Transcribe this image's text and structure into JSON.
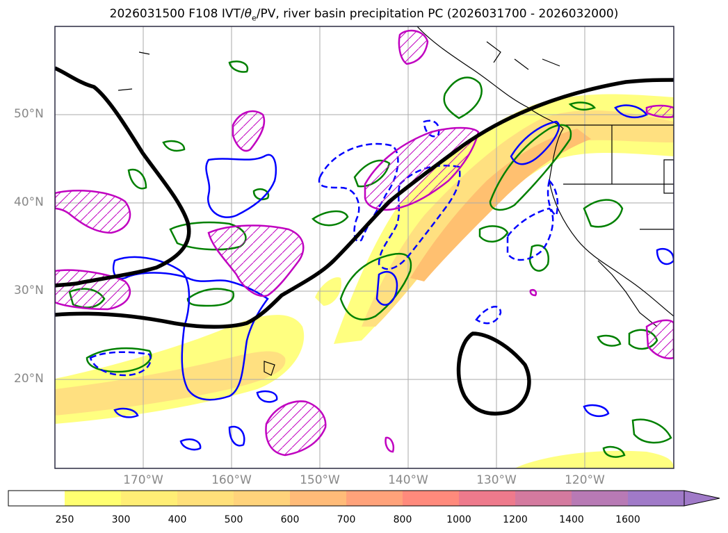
{
  "title": "2026031500 F108 IVT/θe/PV, river basin precipitation PC (2026031700 - 2026032000)",
  "title_parts": {
    "prefix": "2026031500 F108 IVT/",
    "theta": "θ",
    "sub_e": "e",
    "suffix": "/PV, river basin precipitation PC (2026031700 - 2026032000)"
  },
  "map": {
    "lat_labels": [
      "50°N",
      "40°N",
      "30°N",
      "20°N"
    ],
    "lon_labels": [
      "170°W",
      "160°W",
      "150°W",
      "140°W",
      "130°W",
      "120°W"
    ],
    "colors": {
      "ivt_low": "#ffff80",
      "ivt_mid": "#ffe080",
      "ivt_high": "#ffc070",
      "theta_contour": "#0000ff",
      "pv_contour": "#008000",
      "precip_contour": "#c000c0",
      "coastline": "#000000",
      "gridline": "#aaaaaa"
    }
  },
  "colorbar": {
    "ticks": [
      "250",
      "300",
      "400",
      "500",
      "600",
      "700",
      "800",
      "1000",
      "1200",
      "1400",
      "1600"
    ],
    "bins": [
      "#ffffff",
      "#ffff70",
      "#ffee75",
      "#ffe07a",
      "#ffd37b",
      "#ffbb78",
      "#ffa27a",
      "#ff8a7c",
      "#ee7a8c",
      "#d47a9f",
      "#b87ab5",
      "#a07ac8"
    ]
  }
}
